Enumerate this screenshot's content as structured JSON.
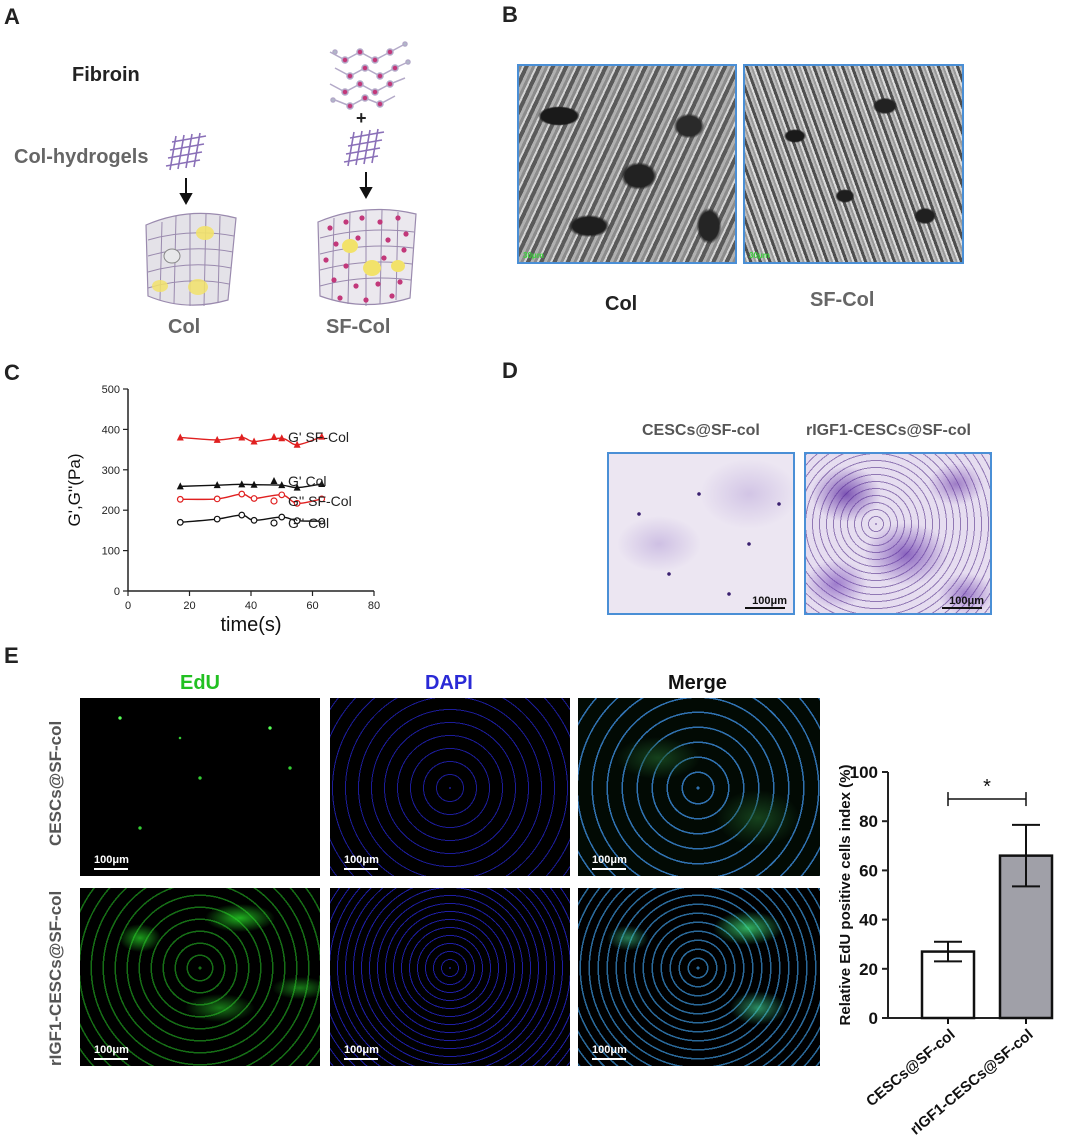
{
  "panels": {
    "a": "A",
    "b": "B",
    "c": "C",
    "d": "D",
    "e": "E"
  },
  "panel_a": {
    "fibroin_label": "Fibroin",
    "plus_sign": "+",
    "colhydrogels_label": "Col-hydrogels",
    "col_label": "Col",
    "sfcol_label": "SF-Col"
  },
  "panel_b": {
    "col_label": "Col",
    "sfcol_label": "SF-Col",
    "scale_left": "30μm",
    "scale_right": "30μm"
  },
  "panel_c": {
    "legend": [
      "G' SF-Col",
      "G' Col",
      "G'' SF-Col",
      "G'' Col"
    ]
  },
  "panel_d": {
    "title_left": "CESCs@SF-col",
    "title_right": "rIGF1-CESCs@SF-col",
    "scale": "100μm"
  },
  "panel_e": {
    "col_headers": [
      "EdU",
      "DAPI",
      "Merge"
    ],
    "row_labels": [
      "CESCs@SF-col",
      "rIGF1-CESCs@SF-col"
    ],
    "scale": "100μm",
    "significance": "*"
  },
  "colors": {
    "edu": "#22c022",
    "dapi": "#2a2ad6",
    "red_series": "#e02020",
    "black_series": "#111111",
    "bar_gray": "#a0a0a8",
    "frame_blue": "#4a8fd6",
    "violet": "#7a4ab0"
  },
  "chart_data": [
    {
      "type": "line",
      "xlabel": "time(s)",
      "ylabel": "G',G''(Pa)",
      "xlim": [
        0,
        80
      ],
      "ylim": [
        0,
        500
      ],
      "xticks": [
        0,
        20,
        40,
        60,
        80
      ],
      "yticks": [
        0,
        100,
        200,
        300,
        400,
        500
      ],
      "series": [
        {
          "name": "G' SF-Col",
          "marker": "filled-triangle",
          "color": "#e02020",
          "x": [
            17,
            29,
            37,
            41,
            50,
            55,
            63
          ],
          "y": [
            380,
            374,
            380,
            370,
            378,
            362,
            382
          ]
        },
        {
          "name": "G' Col",
          "marker": "filled-triangle",
          "color": "#111111",
          "x": [
            17,
            29,
            37,
            41,
            50,
            55,
            63
          ],
          "y": [
            259,
            262,
            264,
            263,
            262,
            256,
            265
          ]
        },
        {
          "name": "G'' SF-Col",
          "marker": "open-circle",
          "color": "#e02020",
          "x": [
            17,
            29,
            37,
            41,
            50,
            55,
            63
          ],
          "y": [
            227,
            228,
            240,
            229,
            238,
            217,
            228
          ]
        },
        {
          "name": "G'' Col",
          "marker": "open-circle",
          "color": "#111111",
          "x": [
            17,
            29,
            37,
            41,
            50,
            55,
            63
          ],
          "y": [
            170,
            178,
            188,
            175,
            183,
            174,
            173
          ]
        }
      ]
    },
    {
      "type": "bar",
      "ylabel": "Relative EdU positive cells index (%)",
      "ylim": [
        0,
        100
      ],
      "yticks": [
        0,
        20,
        40,
        60,
        80,
        100
      ],
      "categories": [
        "CESCs@SF-col",
        "rIGF1-CESCs@SF-col"
      ],
      "values": [
        27,
        66
      ],
      "errors": [
        4,
        12.5
      ],
      "fills": [
        "#ffffff",
        "#a0a0a8"
      ]
    }
  ]
}
